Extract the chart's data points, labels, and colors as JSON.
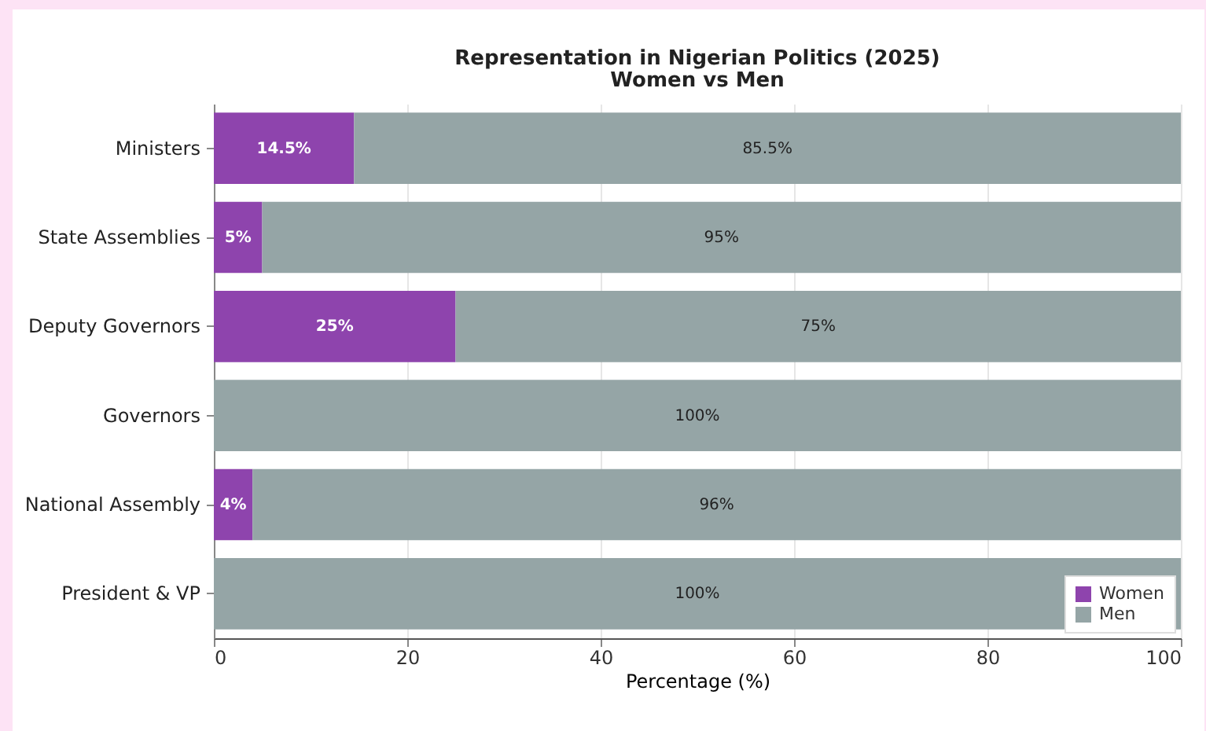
{
  "chart_data": {
    "type": "bar",
    "orientation": "horizontal",
    "stacked": true,
    "title": "Representation in Nigerian Politics (2025)",
    "subtitle": "Women vs Men",
    "xlabel": "Percentage (%)",
    "categories": [
      "Ministers",
      "State Assemblies",
      "Deputy Governors",
      "Governors",
      "National Assembly",
      "President & VP"
    ],
    "series": [
      {
        "name": "Women",
        "color": "#8e44ad",
        "values": [
          14.5,
          5,
          25,
          0,
          4,
          0
        ],
        "value_labels": [
          "14.5%",
          "5%",
          "25%",
          null,
          "4%",
          null
        ]
      },
      {
        "name": "Men",
        "color": "#95a5a6",
        "values": [
          85.5,
          95,
          75,
          100,
          96,
          100
        ],
        "value_labels": [
          "85.5%",
          "95%",
          "75%",
          "100%",
          "96%",
          "100%"
        ]
      }
    ],
    "xlim": [
      0,
      100
    ],
    "xticks": [
      0,
      20,
      40,
      60,
      80,
      100
    ],
    "grid": "x",
    "legend": "bottom right"
  }
}
